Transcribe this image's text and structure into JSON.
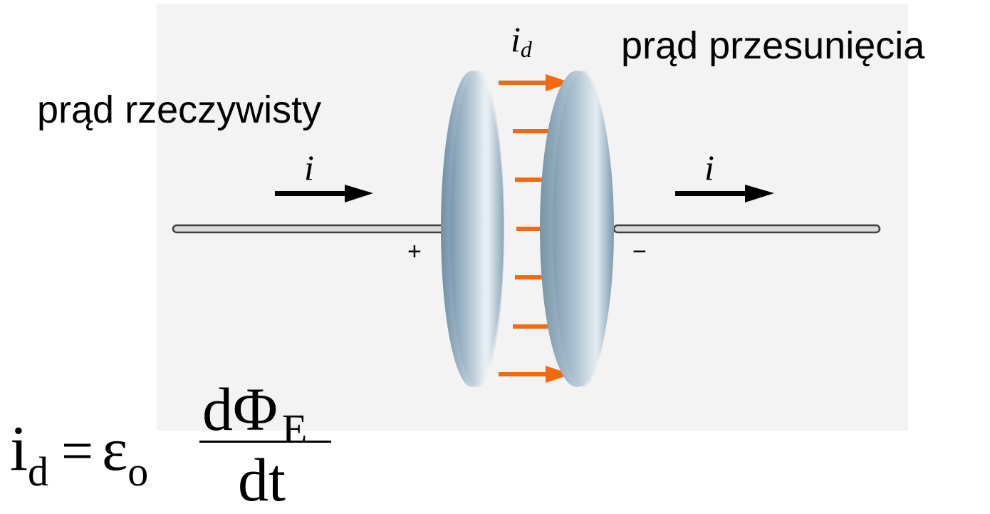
{
  "labels": {
    "real_current": "prąd rzeczywisty",
    "displacement_current": "prąd przesunięcia",
    "i_left": "i",
    "i_right": "i",
    "id_main": "i",
    "id_sub": "d",
    "plus": "+",
    "minus": "−"
  },
  "formula": {
    "lhs_main": "i",
    "lhs_sub": "d",
    "equals": "=",
    "epsilon": "ε",
    "epsilon_sub": "o",
    "numerator_main": "dΦ",
    "numerator_sub": "E",
    "denominator": "dt"
  },
  "colors": {
    "panel": "#f3f3f3",
    "arrow_orange": "#f26a10",
    "plate_blue": "#7f9fb6",
    "wire": "#555555"
  }
}
